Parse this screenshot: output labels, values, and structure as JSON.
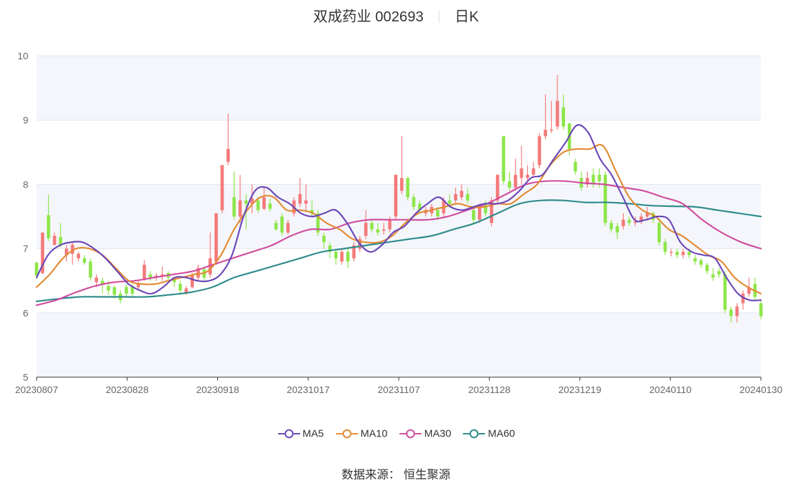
{
  "header": {
    "stock": "双成药业 002693",
    "period": "日K"
  },
  "legend": [
    {
      "name": "MA5",
      "color": "#6b47b8"
    },
    {
      "name": "MA10",
      "color": "#e38a33"
    },
    {
      "name": "MA30",
      "color": "#d04c9e"
    },
    {
      "name": "MA60",
      "color": "#2e8b8b"
    }
  ],
  "source": {
    "label": "数据来源：",
    "value": "恒生聚源"
  },
  "colors": {
    "up": "#f47a7a",
    "down": "#8ee64a",
    "grid": "#e4e6ef",
    "band": "#f4f6fb"
  },
  "chart_data": {
    "type": "candlestick",
    "ylim": [
      5,
      10
    ],
    "yticks": [
      5,
      6,
      7,
      8,
      9,
      10
    ],
    "xticks": [
      "20230807",
      "20230828",
      "20230918",
      "20231017",
      "20231107",
      "20231128",
      "20231219",
      "20240110",
      "20240130"
    ],
    "candles": [
      [
        6.78,
        6.58,
        6.8,
        6.55
      ],
      [
        6.62,
        7.25,
        7.25,
        6.6
      ],
      [
        7.52,
        7.16,
        7.84,
        7.12
      ],
      [
        7.06,
        7.2,
        7.25,
        7.05
      ],
      [
        7.18,
        7.05,
        7.4,
        7.02
      ],
      [
        6.9,
        7.0,
        7.05,
        6.8
      ],
      [
        6.92,
        7.06,
        7.1,
        6.75
      ],
      [
        6.85,
        6.92,
        6.95,
        6.8
      ],
      [
        6.85,
        6.78,
        6.9,
        6.75
      ],
      [
        6.8,
        6.55,
        6.85,
        6.5
      ],
      [
        6.48,
        6.55,
        6.6,
        6.4
      ],
      [
        6.5,
        6.45,
        6.55,
        6.3
      ],
      [
        6.42,
        6.35,
        6.5,
        6.28
      ],
      [
        6.4,
        6.28,
        6.42,
        6.22
      ],
      [
        6.3,
        6.2,
        6.35,
        6.15
      ],
      [
        6.4,
        6.3,
        6.45,
        6.25
      ],
      [
        6.42,
        6.3,
        6.45,
        6.25
      ],
      [
        6.4,
        6.45,
        6.5,
        6.35
      ],
      [
        6.52,
        6.75,
        6.82,
        6.5
      ],
      [
        6.6,
        6.55,
        6.65,
        6.5
      ],
      [
        6.55,
        6.58,
        6.62,
        6.5
      ],
      [
        6.58,
        6.6,
        6.72,
        6.5
      ],
      [
        6.62,
        6.55,
        6.65,
        6.5
      ],
      [
        6.52,
        6.48,
        6.55,
        6.4
      ],
      [
        6.45,
        6.35,
        6.5,
        6.3
      ],
      [
        6.32,
        6.38,
        6.42,
        6.28
      ],
      [
        6.4,
        6.58,
        6.62,
        6.38
      ],
      [
        6.55,
        6.7,
        6.75,
        6.5
      ],
      [
        6.68,
        6.55,
        6.72,
        6.5
      ],
      [
        6.6,
        6.85,
        7.25,
        6.55
      ],
      [
        6.8,
        7.55,
        7.55,
        6.75
      ],
      [
        7.6,
        8.3,
        8.3,
        7.55
      ],
      [
        8.35,
        8.55,
        9.1,
        8.3
      ],
      [
        7.8,
        7.5,
        8.2,
        7.45
      ],
      [
        7.5,
        7.75,
        8.15,
        7.4
      ],
      [
        7.75,
        7.7,
        7.85,
        7.3
      ],
      [
        7.7,
        7.78,
        8.0,
        7.55
      ],
      [
        7.75,
        7.6,
        7.8,
        7.55
      ],
      [
        7.62,
        7.8,
        7.95,
        7.6
      ],
      [
        7.7,
        7.62,
        7.78,
        7.58
      ],
      [
        7.4,
        7.3,
        7.45,
        7.28
      ],
      [
        7.5,
        7.25,
        7.55,
        7.2
      ],
      [
        7.25,
        7.4,
        7.45,
        7.22
      ],
      [
        7.55,
        7.75,
        7.8,
        7.5
      ],
      [
        7.7,
        7.85,
        8.1,
        7.65
      ],
      [
        7.7,
        7.75,
        8.0,
        7.6
      ],
      [
        7.6,
        7.55,
        7.75,
        7.5
      ],
      [
        7.55,
        7.25,
        7.6,
        7.2
      ],
      [
        7.2,
        7.1,
        7.25,
        7.0
      ],
      [
        7.05,
        6.95,
        7.1,
        6.85
      ],
      [
        6.95,
        6.85,
        7.0,
        6.75
      ],
      [
        6.8,
        6.95,
        7.0,
        6.75
      ],
      [
        6.95,
        6.8,
        7.02,
        6.7
      ],
      [
        6.85,
        7.05,
        7.1,
        6.8
      ],
      [
        7.0,
        7.15,
        7.2,
        6.95
      ],
      [
        7.2,
        7.4,
        7.6,
        7.15
      ],
      [
        7.4,
        7.3,
        7.45,
        7.25
      ],
      [
        7.3,
        7.25,
        7.4,
        7.2
      ],
      [
        7.28,
        7.3,
        7.4,
        7.22
      ],
      [
        7.3,
        7.45,
        7.5,
        7.25
      ],
      [
        7.5,
        8.15,
        8.15,
        7.45
      ],
      [
        7.9,
        8.1,
        8.75,
        7.85
      ],
      [
        8.1,
        7.8,
        8.12,
        7.75
      ],
      [
        7.8,
        7.65,
        7.85,
        7.6
      ],
      [
        7.7,
        7.6,
        7.75,
        7.55
      ],
      [
        7.55,
        7.6,
        7.65,
        7.5
      ],
      [
        7.55,
        7.65,
        7.7,
        7.5
      ],
      [
        7.6,
        7.5,
        7.65,
        7.45
      ],
      [
        7.55,
        7.75,
        7.8,
        7.5
      ],
      [
        7.75,
        7.7,
        7.85,
        7.65
      ],
      [
        7.75,
        7.85,
        7.95,
        7.7
      ],
      [
        7.8,
        7.9,
        8.0,
        7.75
      ],
      [
        7.85,
        7.75,
        7.95,
        7.7
      ],
      [
        7.6,
        7.45,
        7.65,
        7.4
      ],
      [
        7.45,
        7.65,
        7.7,
        7.4
      ],
      [
        7.7,
        7.55,
        7.75,
        7.5
      ],
      [
        7.4,
        7.75,
        7.8,
        7.35
      ],
      [
        7.75,
        8.15,
        8.15,
        7.7
      ],
      [
        8.75,
        8.05,
        8.75,
        8.0
      ],
      [
        8.05,
        7.95,
        8.2,
        7.9
      ],
      [
        7.95,
        8.15,
        8.4,
        7.9
      ],
      [
        8.1,
        8.25,
        8.6,
        8.0
      ],
      [
        8.1,
        8.15,
        8.3,
        8.05
      ],
      [
        8.15,
        8.25,
        8.35,
        8.1
      ],
      [
        8.3,
        8.75,
        8.8,
        8.25
      ],
      [
        8.75,
        8.85,
        9.4,
        8.7
      ],
      [
        8.85,
        8.85,
        9.3,
        8.8
      ],
      [
        8.9,
        9.3,
        9.7,
        8.85
      ],
      [
        9.2,
        8.9,
        9.4,
        8.85
      ],
      [
        8.95,
        8.55,
        8.95,
        8.45
      ],
      [
        8.35,
        8.2,
        8.4,
        8.15
      ],
      [
        8.1,
        7.95,
        8.2,
        7.9
      ],
      [
        8.0,
        8.1,
        8.2,
        7.95
      ],
      [
        8.15,
        8.0,
        8.25,
        7.95
      ],
      [
        8.15,
        8.05,
        8.25,
        7.95
      ],
      [
        8.15,
        7.4,
        8.2,
        7.35
      ],
      [
        7.4,
        7.3,
        7.45,
        7.25
      ],
      [
        7.35,
        7.25,
        7.4,
        7.15
      ],
      [
        7.35,
        7.45,
        7.55,
        7.3
      ],
      [
        7.45,
        7.4,
        7.5,
        7.35
      ],
      [
        7.4,
        7.42,
        7.5,
        7.35
      ],
      [
        7.42,
        7.5,
        7.55,
        7.38
      ],
      [
        7.5,
        7.55,
        7.65,
        7.45
      ],
      [
        7.55,
        7.45,
        7.58,
        7.4
      ],
      [
        7.4,
        7.1,
        7.45,
        7.05
      ],
      [
        7.1,
        6.95,
        7.15,
        6.9
      ],
      [
        6.95,
        6.95,
        7.0,
        6.88
      ],
      [
        6.95,
        6.9,
        7.0,
        6.85
      ],
      [
        6.9,
        6.95,
        7.0,
        6.85
      ],
      [
        6.95,
        6.9,
        7.0,
        6.85
      ],
      [
        6.85,
        6.8,
        6.9,
        6.75
      ],
      [
        6.82,
        6.75,
        6.85,
        6.7
      ],
      [
        6.75,
        6.65,
        6.78,
        6.6
      ],
      [
        6.6,
        6.55,
        6.7,
        6.5
      ],
      [
        6.65,
        6.6,
        6.7,
        6.55
      ],
      [
        6.6,
        6.05,
        6.65,
        6.0
      ],
      [
        6.05,
        5.95,
        6.1,
        5.85
      ],
      [
        5.95,
        6.1,
        6.15,
        5.85
      ],
      [
        6.15,
        6.3,
        6.35,
        6.05
      ],
      [
        6.3,
        6.4,
        6.55,
        6.25
      ],
      [
        6.45,
        6.25,
        6.55,
        6.2
      ],
      [
        6.15,
        5.95,
        6.2,
        5.9
      ]
    ],
    "series": [
      {
        "name": "MA5",
        "values": [
          6.55,
          6.9,
          7.05,
          7.1,
          7.1,
          7.0,
          6.85,
          6.65,
          6.45,
          6.35,
          6.3,
          6.4,
          6.55,
          6.55,
          6.5,
          6.5,
          6.6,
          6.9,
          7.5,
          7.9,
          7.95,
          7.8,
          7.7,
          7.55,
          7.5,
          7.55,
          7.6,
          7.4,
          7.1,
          6.95,
          7.05,
          7.25,
          7.35,
          7.55,
          7.7,
          7.8,
          7.65,
          7.6,
          7.65,
          7.7,
          7.7,
          7.75,
          7.9,
          8.1,
          8.15,
          8.4,
          8.65,
          8.92,
          8.8,
          8.4,
          8.15,
          7.8,
          7.45,
          7.45,
          7.5,
          7.45,
          7.1,
          6.95,
          6.9,
          6.85,
          6.55,
          6.3,
          6.2,
          6.2
        ]
      },
      {
        "name": "MA10",
        "values": [
          6.4,
          6.6,
          6.85,
          7.0,
          7.0,
          6.9,
          6.7,
          6.5,
          6.45,
          6.45,
          6.5,
          6.55,
          6.6,
          6.65,
          6.9,
          7.3,
          7.6,
          7.8,
          7.8,
          7.6,
          7.6,
          7.55,
          7.4,
          7.3,
          7.15,
          7.1,
          7.1,
          7.2,
          7.4,
          7.55,
          7.6,
          7.65,
          7.7,
          7.65,
          7.65,
          7.7,
          7.7,
          7.85,
          8.0,
          8.3,
          8.5,
          8.55,
          8.55,
          8.6,
          8.2,
          7.8,
          7.6,
          7.5,
          7.3,
          7.2,
          7.05,
          6.9,
          6.8,
          6.55,
          6.4,
          6.3
        ]
      },
      {
        "name": "MA30",
        "values": [
          6.12,
          6.2,
          6.32,
          6.42,
          6.48,
          6.5,
          6.55,
          6.6,
          6.65,
          6.75,
          6.85,
          6.95,
          7.05,
          7.2,
          7.3,
          7.3,
          7.4,
          7.45,
          7.45,
          7.45,
          7.45,
          7.5,
          7.6,
          7.7,
          7.85,
          8.0,
          8.05,
          8.05,
          8.02,
          8.0,
          7.95,
          7.9,
          7.8,
          7.7,
          7.45,
          7.25,
          7.1,
          7.0
        ]
      },
      {
        "name": "MA60",
        "values": [
          6.18,
          6.22,
          6.25,
          6.25,
          6.25,
          6.25,
          6.28,
          6.32,
          6.4,
          6.55,
          6.65,
          6.75,
          6.85,
          6.95,
          7.0,
          7.05,
          7.1,
          7.15,
          7.2,
          7.3,
          7.4,
          7.55,
          7.7,
          7.75,
          7.75,
          7.72,
          7.72,
          7.7,
          7.67,
          7.66,
          7.65,
          7.6,
          7.55,
          7.5
        ]
      }
    ]
  }
}
